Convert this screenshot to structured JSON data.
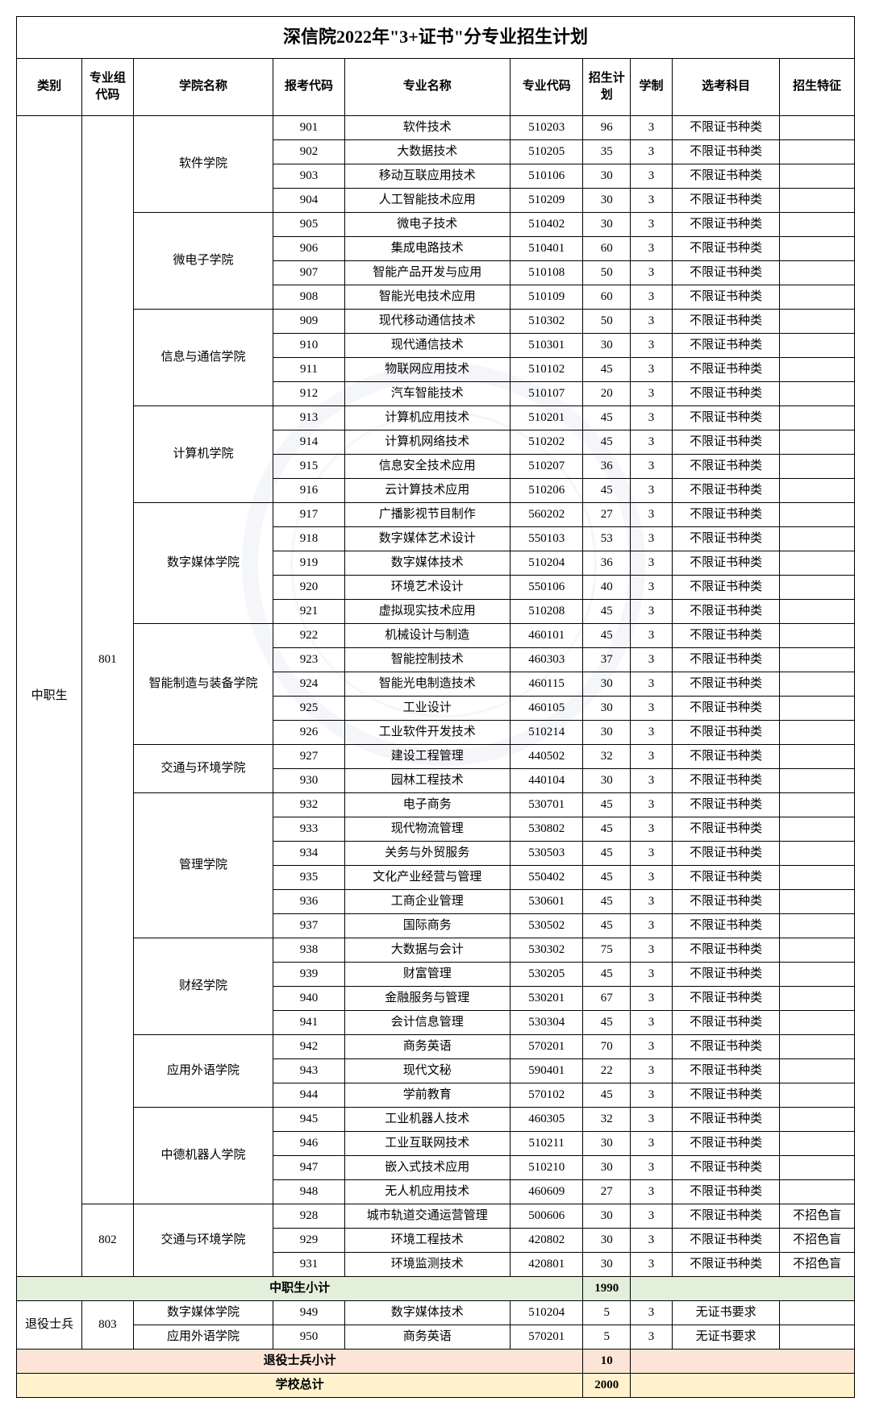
{
  "title": "深信院2022年\"3+证书\"分专业招生计划",
  "headers": [
    "类别",
    "专业组代码",
    "学院名称",
    "报考代码",
    "专业名称",
    "专业代码",
    "招生计划",
    "学制",
    "选考科目",
    "招生特征"
  ],
  "cat1": "中职生",
  "cat2": "退役士兵",
  "group801": "801",
  "group802": "802",
  "group803": "803",
  "schools": {
    "sw": "软件学院",
    "me": "微电子学院",
    "ic": "信息与通信学院",
    "cs": "计算机学院",
    "dm": "数字媒体学院",
    "im": "智能制造与装备学院",
    "te": "交通与环境学院",
    "mg": "管理学院",
    "fn": "财经学院",
    "fl": "应用外语学院",
    "rb": "中德机器人学院"
  },
  "sub1_label": "中职生小计",
  "sub1_val": "1990",
  "sub2_label": "退役士兵小计",
  "sub2_val": "10",
  "total_label": "学校总计",
  "total_val": "2000",
  "req_any": "不限证书种类",
  "req_none": "无证书要求",
  "nocb": "不招色盲",
  "rows": [
    {
      "c": "901",
      "m": "软件技术",
      "mc": "510203",
      "p": "96",
      "d": "3"
    },
    {
      "c": "902",
      "m": "大数据技术",
      "mc": "510205",
      "p": "35",
      "d": "3"
    },
    {
      "c": "903",
      "m": "移动互联应用技术",
      "mc": "510106",
      "p": "30",
      "d": "3"
    },
    {
      "c": "904",
      "m": "人工智能技术应用",
      "mc": "510209",
      "p": "30",
      "d": "3"
    },
    {
      "c": "905",
      "m": "微电子技术",
      "mc": "510402",
      "p": "30",
      "d": "3"
    },
    {
      "c": "906",
      "m": "集成电路技术",
      "mc": "510401",
      "p": "60",
      "d": "3"
    },
    {
      "c": "907",
      "m": "智能产品开发与应用",
      "mc": "510108",
      "p": "50",
      "d": "3"
    },
    {
      "c": "908",
      "m": "智能光电技术应用",
      "mc": "510109",
      "p": "60",
      "d": "3"
    },
    {
      "c": "909",
      "m": "现代移动通信技术",
      "mc": "510302",
      "p": "50",
      "d": "3"
    },
    {
      "c": "910",
      "m": "现代通信技术",
      "mc": "510301",
      "p": "30",
      "d": "3"
    },
    {
      "c": "911",
      "m": "物联网应用技术",
      "mc": "510102",
      "p": "45",
      "d": "3"
    },
    {
      "c": "912",
      "m": "汽车智能技术",
      "mc": "510107",
      "p": "20",
      "d": "3"
    },
    {
      "c": "913",
      "m": "计算机应用技术",
      "mc": "510201",
      "p": "45",
      "d": "3"
    },
    {
      "c": "914",
      "m": "计算机网络技术",
      "mc": "510202",
      "p": "45",
      "d": "3"
    },
    {
      "c": "915",
      "m": "信息安全技术应用",
      "mc": "510207",
      "p": "36",
      "d": "3"
    },
    {
      "c": "916",
      "m": "云计算技术应用",
      "mc": "510206",
      "p": "45",
      "d": "3"
    },
    {
      "c": "917",
      "m": "广播影视节目制作",
      "mc": "560202",
      "p": "27",
      "d": "3"
    },
    {
      "c": "918",
      "m": "数字媒体艺术设计",
      "mc": "550103",
      "p": "53",
      "d": "3"
    },
    {
      "c": "919",
      "m": "数字媒体技术",
      "mc": "510204",
      "p": "36",
      "d": "3"
    },
    {
      "c": "920",
      "m": "环境艺术设计",
      "mc": "550106",
      "p": "40",
      "d": "3"
    },
    {
      "c": "921",
      "m": "虚拟现实技术应用",
      "mc": "510208",
      "p": "45",
      "d": "3"
    },
    {
      "c": "922",
      "m": "机械设计与制造",
      "mc": "460101",
      "p": "45",
      "d": "3"
    },
    {
      "c": "923",
      "m": "智能控制技术",
      "mc": "460303",
      "p": "37",
      "d": "3"
    },
    {
      "c": "924",
      "m": "智能光电制造技术",
      "mc": "460115",
      "p": "30",
      "d": "3"
    },
    {
      "c": "925",
      "m": "工业设计",
      "mc": "460105",
      "p": "30",
      "d": "3"
    },
    {
      "c": "926",
      "m": "工业软件开发技术",
      "mc": "510214",
      "p": "30",
      "d": "3"
    },
    {
      "c": "927",
      "m": "建设工程管理",
      "mc": "440502",
      "p": "32",
      "d": "3"
    },
    {
      "c": "930",
      "m": "园林工程技术",
      "mc": "440104",
      "p": "30",
      "d": "3"
    },
    {
      "c": "932",
      "m": "电子商务",
      "mc": "530701",
      "p": "45",
      "d": "3"
    },
    {
      "c": "933",
      "m": "现代物流管理",
      "mc": "530802",
      "p": "45",
      "d": "3"
    },
    {
      "c": "934",
      "m": "关务与外贸服务",
      "mc": "530503",
      "p": "45",
      "d": "3"
    },
    {
      "c": "935",
      "m": "文化产业经营与管理",
      "mc": "550402",
      "p": "45",
      "d": "3"
    },
    {
      "c": "936",
      "m": "工商企业管理",
      "mc": "530601",
      "p": "45",
      "d": "3"
    },
    {
      "c": "937",
      "m": "国际商务",
      "mc": "530502",
      "p": "45",
      "d": "3"
    },
    {
      "c": "938",
      "m": "大数据与会计",
      "mc": "530302",
      "p": "75",
      "d": "3"
    },
    {
      "c": "939",
      "m": "财富管理",
      "mc": "530205",
      "p": "45",
      "d": "3"
    },
    {
      "c": "940",
      "m": "金融服务与管理",
      "mc": "530201",
      "p": "67",
      "d": "3"
    },
    {
      "c": "941",
      "m": "会计信息管理",
      "mc": "530304",
      "p": "45",
      "d": "3"
    },
    {
      "c": "942",
      "m": "商务英语",
      "mc": "570201",
      "p": "70",
      "d": "3"
    },
    {
      "c": "943",
      "m": "现代文秘",
      "mc": "590401",
      "p": "22",
      "d": "3"
    },
    {
      "c": "944",
      "m": "学前教育",
      "mc": "570102",
      "p": "45",
      "d": "3"
    },
    {
      "c": "945",
      "m": "工业机器人技术",
      "mc": "460305",
      "p": "32",
      "d": "3"
    },
    {
      "c": "946",
      "m": "工业互联网技术",
      "mc": "510211",
      "p": "30",
      "d": "3"
    },
    {
      "c": "947",
      "m": "嵌入式技术应用",
      "mc": "510210",
      "p": "30",
      "d": "3"
    },
    {
      "c": "948",
      "m": "无人机应用技术",
      "mc": "460609",
      "p": "27",
      "d": "3"
    },
    {
      "c": "928",
      "m": "城市轨道交通运营管理",
      "mc": "500606",
      "p": "30",
      "d": "3"
    },
    {
      "c": "929",
      "m": "环境工程技术",
      "mc": "420802",
      "p": "30",
      "d": "3"
    },
    {
      "c": "931",
      "m": "环境监测技术",
      "mc": "420801",
      "p": "30",
      "d": "3"
    },
    {
      "c": "949",
      "m": "数字媒体技术",
      "mc": "510204",
      "p": "5",
      "d": "3"
    },
    {
      "c": "950",
      "m": "商务英语",
      "mc": "570201",
      "p": "5",
      "d": "3"
    }
  ]
}
